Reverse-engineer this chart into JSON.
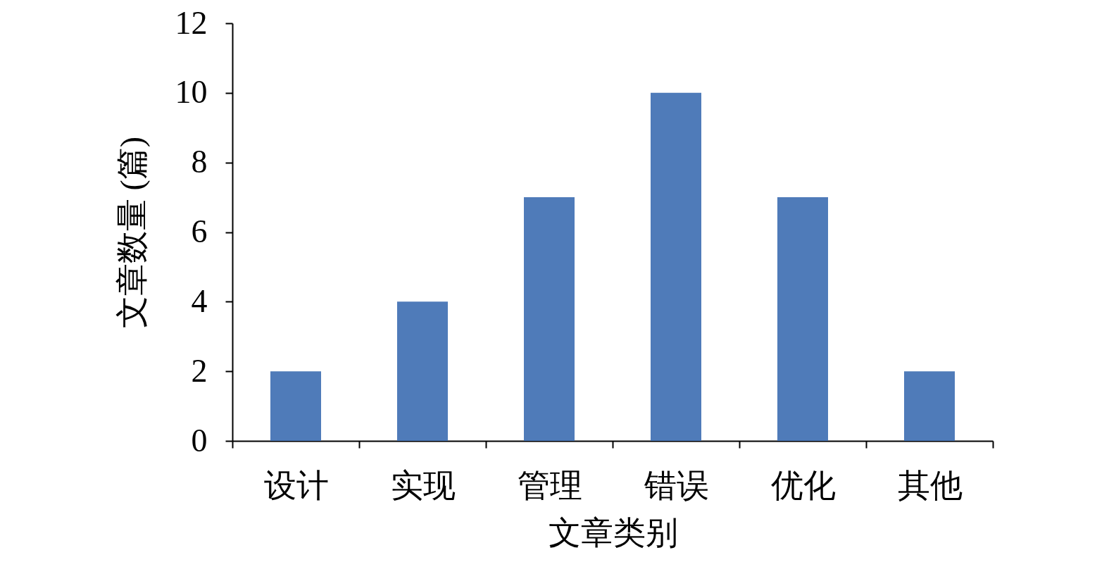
{
  "chart_data": {
    "type": "bar",
    "categories": [
      "设计",
      "实现",
      "管理",
      "错误",
      "优化",
      "其他"
    ],
    "values": [
      2,
      4,
      7,
      10,
      7,
      2
    ],
    "color": "#4f7bb9",
    "xlabel": "文章类别",
    "ylabel": "文章数量 (篇)",
    "ylim": [
      0,
      12
    ],
    "yticks": [
      0,
      2,
      4,
      6,
      8,
      10,
      12
    ]
  }
}
